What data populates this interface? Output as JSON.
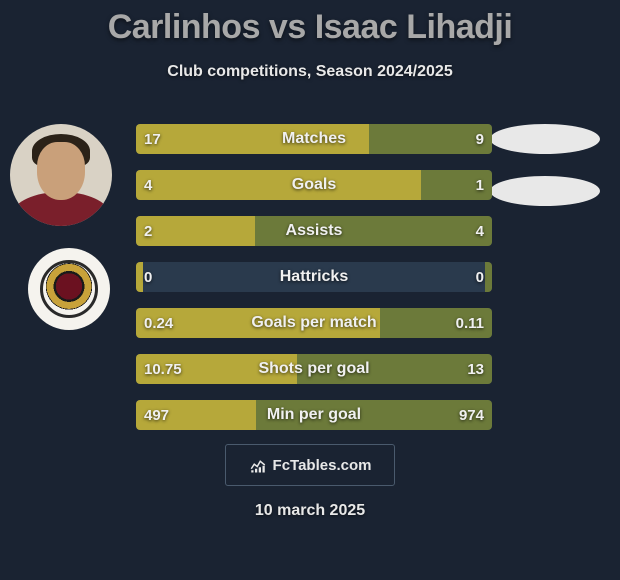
{
  "title": "Carlinhos vs Isaac Lihadji",
  "subtitle": "Club competitions, Season 2024/2025",
  "date": "10 march 2025",
  "watermark": "FcTables.com",
  "colors": {
    "background": "#1a2332",
    "bar_track": "#2a3a4d",
    "player1": "#b6a83a",
    "player2": "#6c7a3a",
    "text": "#f0f0f0",
    "title_text": "#a8a8a8",
    "oval": "#e8e8e8"
  },
  "bars": [
    {
      "label": "Matches",
      "left": "17",
      "right": "9",
      "left_ratio": 0.654,
      "right_ratio": 0.346
    },
    {
      "label": "Goals",
      "left": "4",
      "right": "1",
      "left_ratio": 0.8,
      "right_ratio": 0.2
    },
    {
      "label": "Assists",
      "left": "2",
      "right": "4",
      "left_ratio": 0.333,
      "right_ratio": 0.667
    },
    {
      "label": "Hattricks",
      "left": "0",
      "right": "0",
      "left_ratio": 0.02,
      "right_ratio": 0.02
    },
    {
      "label": "Goals per match",
      "left": "0.24",
      "right": "0.11",
      "left_ratio": 0.686,
      "right_ratio": 0.314
    },
    {
      "label": "Shots per goal",
      "left": "10.75",
      "right": "13",
      "left_ratio": 0.453,
      "right_ratio": 0.547
    },
    {
      "label": "Min per goal",
      "left": "497",
      "right": "974",
      "left_ratio": 0.338,
      "right_ratio": 0.662
    }
  ],
  "bar_style": {
    "height": 30,
    "gap": 16,
    "font_size": 15,
    "label_font_size": 16,
    "border_radius": 4
  }
}
